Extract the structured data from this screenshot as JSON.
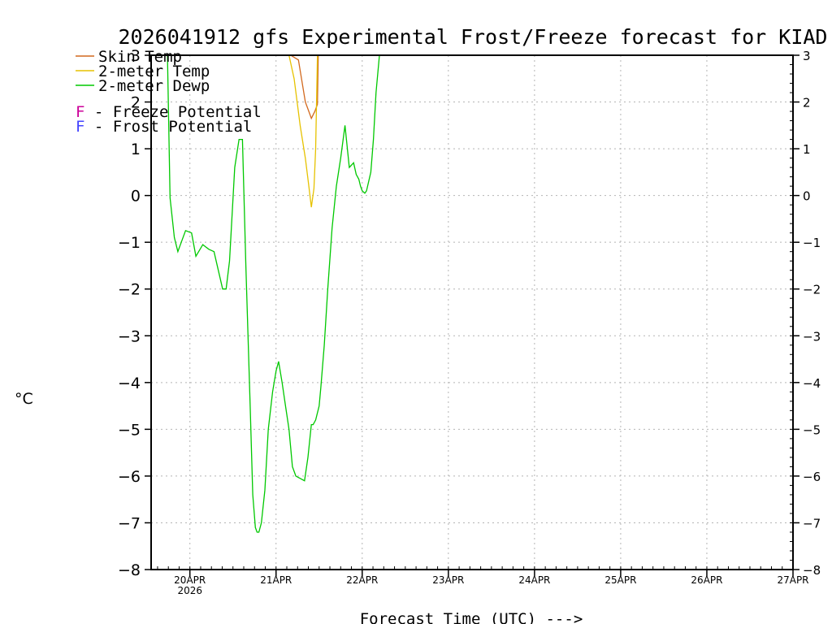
{
  "chart_data": {
    "type": "line",
    "title": "2026041912 gfs Experimental Frost/Freeze forecast for KIAD",
    "xlabel": "Forecast Time (UTC) --->",
    "ylabel": "°C",
    "ylim": [
      -8,
      3
    ],
    "xlim": [
      -0.45,
      7.0
    ],
    "grid": true,
    "y_ticks": [
      3,
      2,
      1,
      0,
      -1,
      -2,
      -3,
      -4,
      -5,
      -6,
      -7,
      -8
    ],
    "x_ticks": [
      {
        "label": "20APR",
        "sub": "2026",
        "x": 0
      },
      {
        "label": "21APR",
        "x": 1
      },
      {
        "label": "22APR",
        "x": 2
      },
      {
        "label": "23APR",
        "x": 3
      },
      {
        "label": "24APR",
        "x": 4
      },
      {
        "label": "25APR",
        "x": 5
      },
      {
        "label": "26APR",
        "x": 6
      },
      {
        "label": "27APR",
        "x": 7
      }
    ],
    "legend": [
      {
        "label": "Skin Temp",
        "color": "#d2691e"
      },
      {
        "label": "2-meter Temp",
        "color": "#e6c200"
      },
      {
        "label": "2-meter Dewp",
        "color": "#00c800"
      }
    ],
    "legend2": [
      {
        "mark": "F",
        "label": " - Freeze Potential",
        "color": "#cc0099"
      },
      {
        "mark": "F",
        "label": " - Frost Potential",
        "color": "#4444ff"
      }
    ],
    "series": [
      {
        "name": "Skin Temp",
        "color": "#d2691e",
        "x": [
          1.17,
          1.26,
          1.34,
          1.38,
          1.41,
          1.45,
          1.48,
          1.49
        ],
        "y": [
          3.0,
          2.9,
          2.0,
          1.8,
          1.65,
          1.8,
          1.95,
          3.0
        ]
      },
      {
        "name": "2-meter Temp",
        "color": "#e6c200",
        "x": [
          1.15,
          1.21,
          1.28,
          1.34,
          1.38,
          1.41,
          1.44,
          1.46,
          1.48
        ],
        "y": [
          3.0,
          2.5,
          1.5,
          0.8,
          0.2,
          -0.25,
          0.15,
          1.0,
          3.0
        ]
      },
      {
        "name": "2-meter Dewp",
        "color": "#00c800",
        "x": [
          -0.26,
          -0.23,
          -0.18,
          -0.14,
          -0.1,
          -0.05,
          0.02,
          0.07,
          0.15,
          0.22,
          0.28,
          0.33,
          0.38,
          0.42,
          0.46,
          0.52,
          0.57,
          0.61,
          0.65,
          0.7,
          0.73,
          0.76,
          0.78,
          0.8,
          0.83,
          0.87,
          0.91,
          0.96,
          1.0,
          1.03,
          1.07,
          1.11,
          1.15,
          1.19,
          1.23,
          1.28,
          1.33,
          1.37,
          1.41,
          1.43,
          1.46,
          1.5,
          1.52,
          1.56,
          1.6,
          1.65,
          1.7,
          1.75,
          1.8,
          1.85,
          1.9,
          1.93,
          1.96,
          1.98,
          2.0,
          2.03,
          2.05,
          2.1,
          2.13,
          2.16,
          2.2,
          2.23,
          2.26,
          2.3,
          2.35,
          2.4,
          2.43
        ],
        "y": [
          3.0,
          -0.05,
          -0.9,
          -1.2,
          -1.0,
          -0.75,
          -0.8,
          -1.3,
          -1.05,
          -1.15,
          -1.2,
          -1.6,
          -2.0,
          -2.0,
          -1.4,
          0.6,
          1.2,
          1.2,
          -1.5,
          -4.5,
          -6.4,
          -7.1,
          -7.2,
          -7.2,
          -7.0,
          -6.3,
          -5.0,
          -4.2,
          -3.75,
          -3.55,
          -4.0,
          -4.5,
          -5.0,
          -5.8,
          -6.0,
          -6.05,
          -6.1,
          -5.6,
          -4.9,
          -4.9,
          -4.8,
          -4.5,
          -4.1,
          -3.2,
          -2.0,
          -0.7,
          0.2,
          0.8,
          1.5,
          0.6,
          0.7,
          0.45,
          0.35,
          0.2,
          0.1,
          0.05,
          0.1,
          0.5,
          1.2,
          2.2,
          3.0,
          3.0,
          3.0,
          3.0,
          3.0,
          3.0,
          3.0
        ]
      }
    ]
  }
}
